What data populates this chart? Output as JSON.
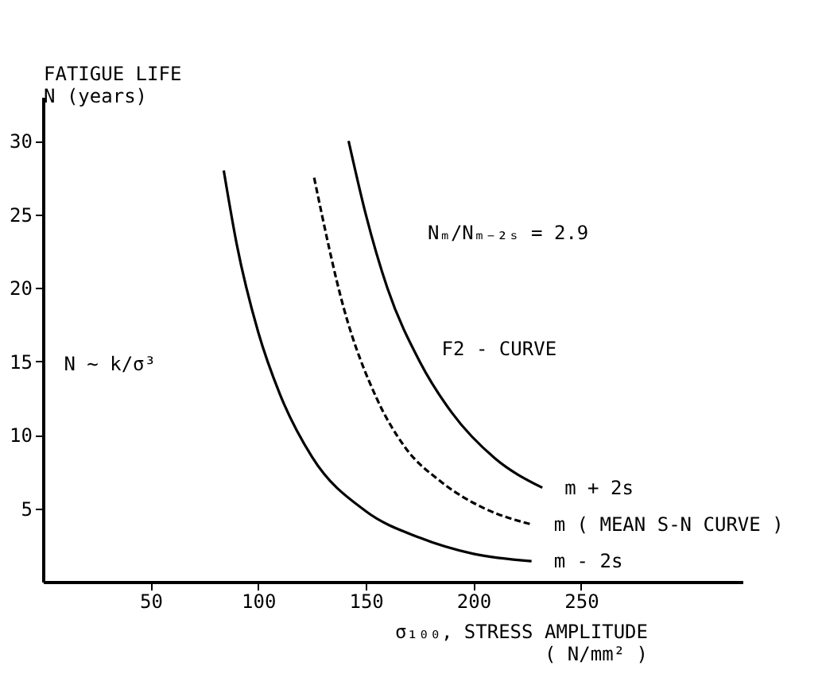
{
  "chart_data": {
    "type": "line",
    "ylabel": "FATIGUE LIFE\nN (years)",
    "xlabel": "σ₁₀₀, STRESS AMPLITUDE\n( N/mm² )",
    "xlim": [
      0,
      325
    ],
    "ylim": [
      0,
      33
    ],
    "xticks": [
      50,
      100,
      150,
      200,
      250
    ],
    "yticks": [
      5,
      10,
      15,
      20,
      25,
      30
    ],
    "grid": false,
    "marker": "none",
    "series": [
      {
        "name": "m + 2s",
        "color": "#000000",
        "line_style": "solid",
        "x": [
          142,
          150,
          160,
          175,
          190,
          210,
          232
        ],
        "values": [
          30,
          25,
          20,
          15,
          11.5,
          8.4,
          6.4
        ]
      },
      {
        "name": "m ( MEAN S-N CURVE )",
        "color": "#000000",
        "line_style": "dashed",
        "x": [
          126,
          140,
          155,
          168,
          185,
          205,
          227
        ],
        "values": [
          27.5,
          18.5,
          12.5,
          9.2,
          6.8,
          5.0,
          3.9
        ]
      },
      {
        "name": "m - 2s",
        "color": "#000000",
        "line_style": "solid",
        "x": [
          84,
          90,
          100,
          110,
          125,
          150,
          175,
          200,
          227
        ],
        "values": [
          28,
          23,
          17,
          12.8,
          8.5,
          4.8,
          3.0,
          1.9,
          1.4
        ]
      }
    ],
    "annotations": [
      "Nₘ/Nₘ₋₂ₛ = 2.9",
      "F2 - CURVE",
      "N ~ k/σ³"
    ]
  }
}
